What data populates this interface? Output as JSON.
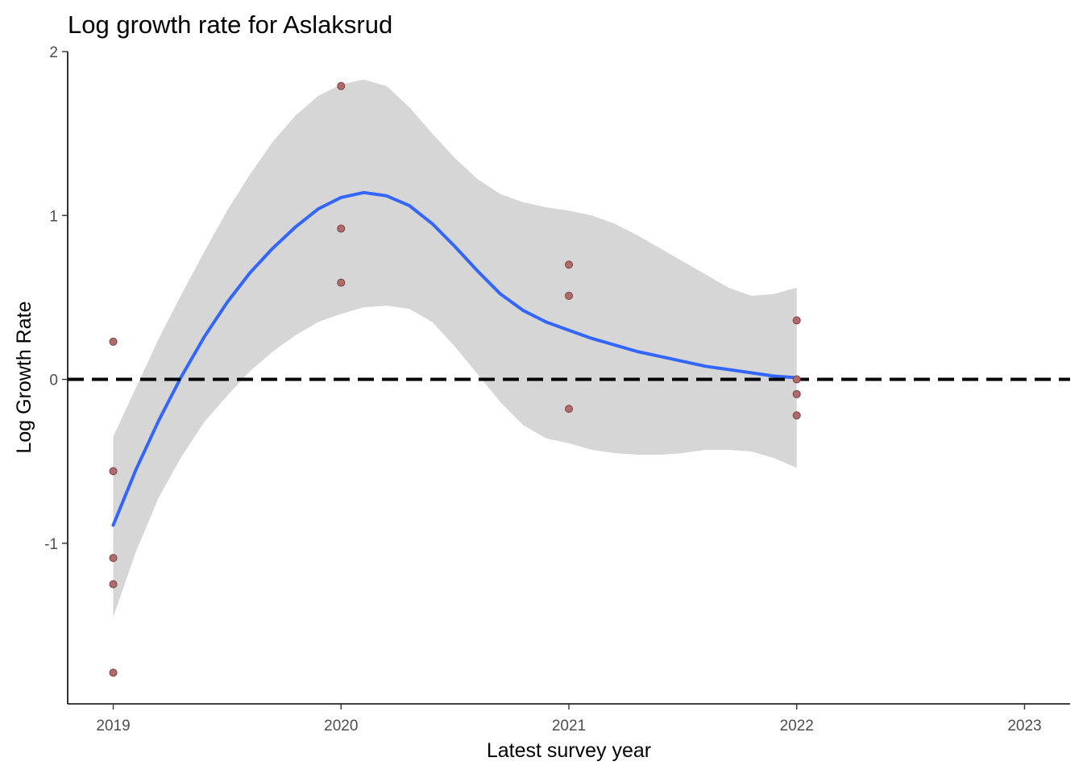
{
  "chart_data": {
    "type": "scatter",
    "title": "Log growth rate for Aslaksrud",
    "xlabel": "Latest survey year",
    "ylabel": "Log Growth Rate",
    "xlim": [
      2018.8,
      2023.2
    ],
    "ylim": [
      -1.98,
      2.0
    ],
    "x_ticks": [
      2019,
      2020,
      2021,
      2022,
      2023
    ],
    "y_ticks": [
      -1,
      0,
      1,
      2
    ],
    "grid": false,
    "reference_line": {
      "y": 0,
      "style": "dashed",
      "color": "#000000"
    },
    "points": [
      {
        "x": 2019,
        "y": 0.23
      },
      {
        "x": 2019,
        "y": -0.56
      },
      {
        "x": 2019,
        "y": -1.09
      },
      {
        "x": 2019,
        "y": -1.25
      },
      {
        "x": 2019,
        "y": -1.79
      },
      {
        "x": 2020,
        "y": 1.79
      },
      {
        "x": 2020,
        "y": 0.92
      },
      {
        "x": 2020,
        "y": 0.59
      },
      {
        "x": 2021,
        "y": 0.7
      },
      {
        "x": 2021,
        "y": 0.51
      },
      {
        "x": 2021,
        "y": -0.18
      },
      {
        "x": 2022,
        "y": 0.36
      },
      {
        "x": 2022,
        "y": 0.0
      },
      {
        "x": 2022,
        "y": -0.09
      },
      {
        "x": 2022,
        "y": -0.22
      }
    ],
    "smooth_line": {
      "color": "#3366FF",
      "x": [
        2019.0,
        2019.1,
        2019.2,
        2019.3,
        2019.4,
        2019.5,
        2019.6,
        2019.7,
        2019.8,
        2019.9,
        2020.0,
        2020.1,
        2020.2,
        2020.3,
        2020.4,
        2020.5,
        2020.6,
        2020.7,
        2020.8,
        2020.9,
        2021.0,
        2021.1,
        2021.2,
        2021.3,
        2021.4,
        2021.5,
        2021.6,
        2021.7,
        2021.8,
        2021.9,
        2022.0
      ],
      "y": [
        -0.89,
        -0.55,
        -0.25,
        0.02,
        0.26,
        0.47,
        0.65,
        0.8,
        0.93,
        1.04,
        1.11,
        1.14,
        1.12,
        1.06,
        0.95,
        0.81,
        0.66,
        0.52,
        0.42,
        0.35,
        0.3,
        0.25,
        0.21,
        0.17,
        0.14,
        0.11,
        0.08,
        0.06,
        0.04,
        0.02,
        0.01
      ]
    },
    "confidence_band": {
      "color": "#d6d6d6",
      "x": [
        2019.0,
        2019.1,
        2019.2,
        2019.3,
        2019.4,
        2019.5,
        2019.6,
        2019.7,
        2019.8,
        2019.9,
        2020.0,
        2020.1,
        2020.2,
        2020.3,
        2020.4,
        2020.5,
        2020.6,
        2020.7,
        2020.8,
        2020.9,
        2021.0,
        2021.1,
        2021.2,
        2021.3,
        2021.4,
        2021.5,
        2021.6,
        2021.7,
        2021.8,
        2021.9,
        2022.0
      ],
      "ymin": [
        -1.45,
        -1.05,
        -0.72,
        -0.47,
        -0.26,
        -0.1,
        0.05,
        0.17,
        0.27,
        0.35,
        0.4,
        0.44,
        0.45,
        0.43,
        0.35,
        0.2,
        0.03,
        -0.14,
        -0.28,
        -0.36,
        -0.39,
        -0.43,
        -0.45,
        -0.46,
        -0.46,
        -0.45,
        -0.43,
        -0.43,
        -0.44,
        -0.48,
        -0.54
      ],
      "ymax": [
        -0.35,
        -0.05,
        0.25,
        0.52,
        0.78,
        1.03,
        1.25,
        1.45,
        1.61,
        1.73,
        1.8,
        1.83,
        1.79,
        1.66,
        1.5,
        1.35,
        1.22,
        1.13,
        1.08,
        1.05,
        1.03,
        1.0,
        0.95,
        0.88,
        0.8,
        0.72,
        0.64,
        0.56,
        0.51,
        0.52,
        0.56
      ]
    },
    "point_color": "#b06b6b",
    "point_edge_color": "#7a3f3f",
    "line_color": "#3366FF",
    "band_color": "#d6d6d6"
  }
}
